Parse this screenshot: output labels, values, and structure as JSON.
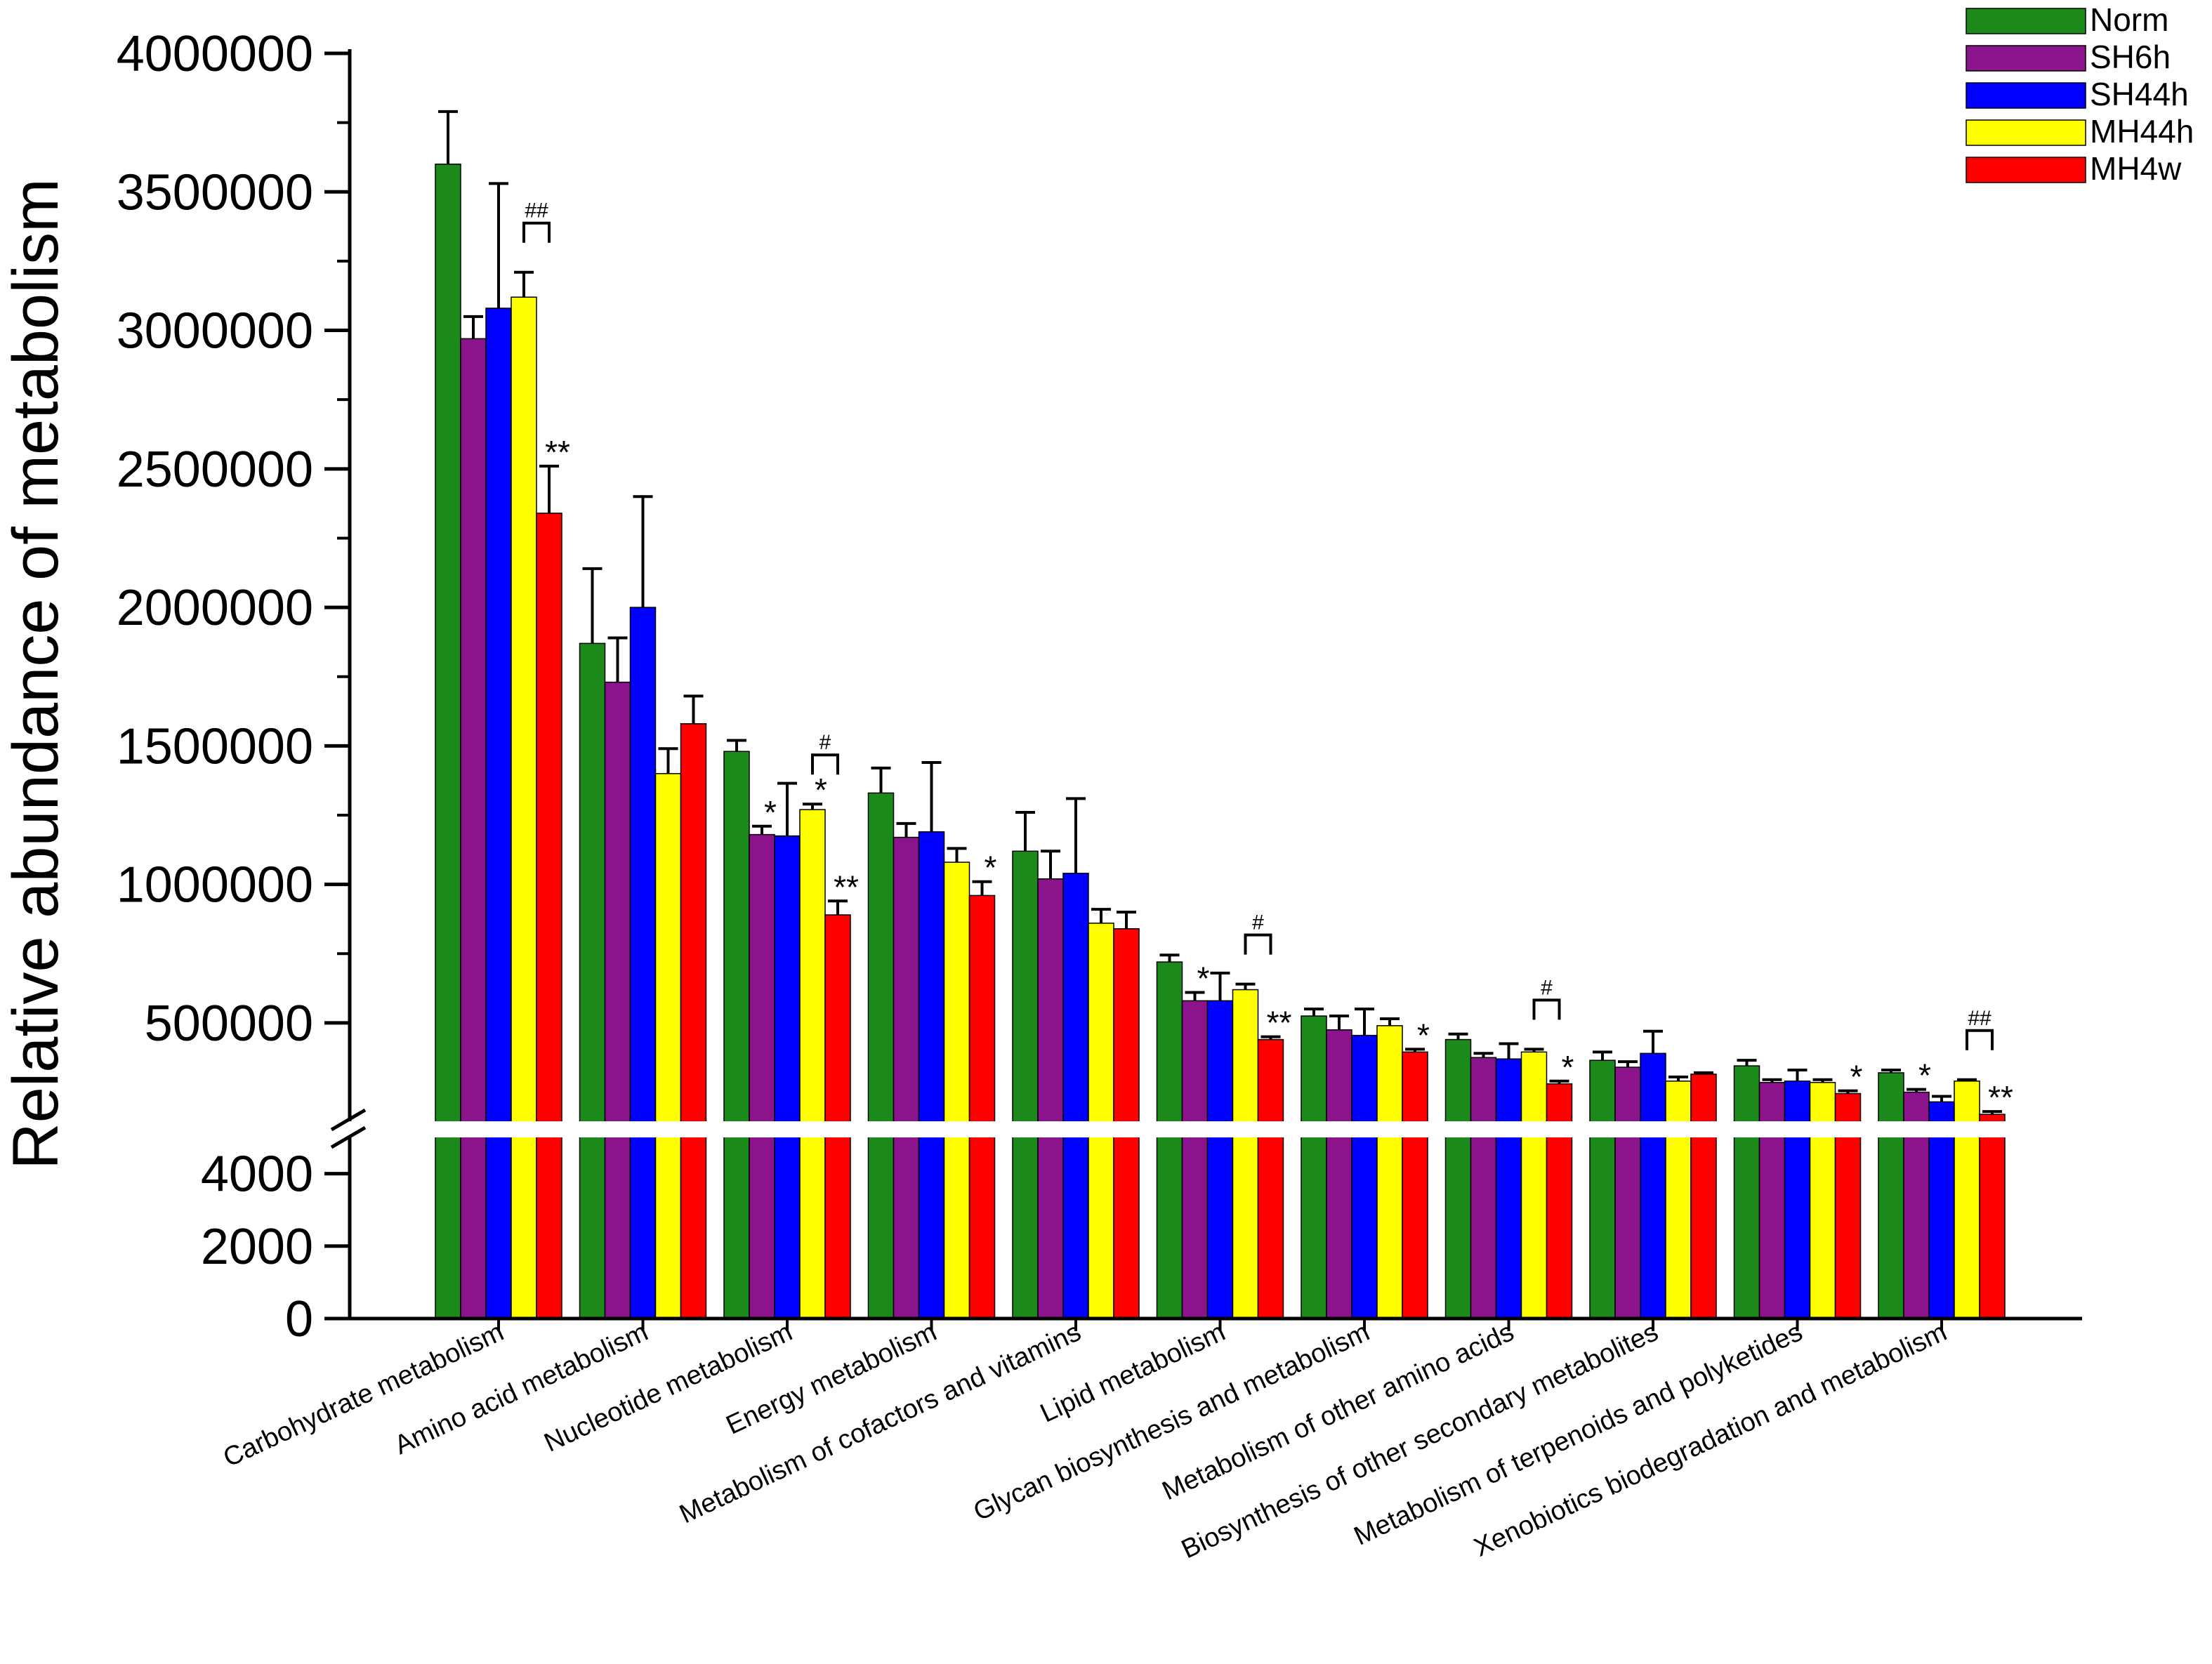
{
  "chart_data": {
    "type": "bar",
    "ylabel": "Relative abundance of metabolism",
    "xlabel": "",
    "title": "",
    "axis_break": true,
    "lower_segment": {
      "ylim": [
        0,
        5000
      ],
      "ticks": [
        0,
        2000,
        4000
      ],
      "tick_labels": [
        "0",
        "2000",
        "4000"
      ]
    },
    "upper_segment": {
      "ylim": [
        150000,
        4000000
      ],
      "ticks": [
        500000,
        1000000,
        1500000,
        2000000,
        2500000,
        3000000,
        3500000,
        4000000
      ],
      "tick_labels": [
        "500000",
        "1000000",
        "1500000",
        "2000000",
        "2500000",
        "3000000",
        "3500000",
        "4000000"
      ]
    },
    "categories": [
      "Carbohydrate metabolism",
      "Amino acid metabolism",
      "Nucleotide metabolism",
      "Energy metabolism",
      "Metabolism of cofactors and vitamins",
      "Lipid metabolism",
      "Glycan biosynthesis and metabolism",
      "Metabolism of other amino acids",
      "Biosynthesis of other secondary metabolites",
      "Metabolism of terpenoids and polyketides",
      "Xenobiotics biodegradation and metabolism"
    ],
    "series": [
      {
        "name": "Norm",
        "color": "#1b8a1b",
        "values": [
          3600000,
          1870000,
          1480000,
          1330000,
          1120000,
          720000,
          525000,
          440000,
          365000,
          345000,
          320000
        ],
        "errors": [
          190000,
          270000,
          40000,
          90000,
          140000,
          25000,
          25000,
          20000,
          30000,
          20000,
          10000
        ]
      },
      {
        "name": "SH6h",
        "color": "#8b138b",
        "values": [
          2970000,
          1730000,
          1180000,
          1170000,
          1020000,
          580000,
          475000,
          375000,
          340000,
          285000,
          250000
        ],
        "errors": [
          80000,
          160000,
          30000,
          50000,
          100000,
          30000,
          50000,
          15000,
          20000,
          10000,
          10000
        ]
      },
      {
        "name": "SH44h",
        "color": "#0000ff",
        "values": [
          3080000,
          2000000,
          1175000,
          1190000,
          1040000,
          580000,
          455000,
          370000,
          390000,
          290000,
          215000
        ],
        "errors": [
          450000,
          400000,
          190000,
          250000,
          270000,
          100000,
          95000,
          55000,
          80000,
          40000,
          20000
        ]
      },
      {
        "name": "MH44h",
        "color": "#ffff00",
        "values": [
          3120000,
          1400000,
          1270000,
          1080000,
          860000,
          620000,
          490000,
          395000,
          290000,
          285000,
          290000
        ],
        "errors": [
          90000,
          90000,
          20000,
          50000,
          50000,
          20000,
          25000,
          10000,
          15000,
          10000,
          5000
        ]
      },
      {
        "name": "MH4w",
        "color": "#ff0000",
        "values": [
          2340000,
          1580000,
          890000,
          960000,
          840000,
          440000,
          395000,
          280000,
          315000,
          245000,
          170000
        ],
        "errors": [
          170000,
          100000,
          50000,
          50000,
          60000,
          10000,
          10000,
          10000,
          5000,
          10000,
          10000
        ]
      }
    ],
    "significance": [
      {
        "category_index": 0,
        "series_index": 4,
        "label": "**"
      },
      {
        "category_index": 2,
        "series_index": 1,
        "label": "*"
      },
      {
        "category_index": 2,
        "series_index": 3,
        "label": "*"
      },
      {
        "category_index": 2,
        "series_index": 4,
        "label": "**"
      },
      {
        "category_index": 3,
        "series_index": 4,
        "label": "*"
      },
      {
        "category_index": 5,
        "series_index": 1,
        "label": "*"
      },
      {
        "category_index": 5,
        "series_index": 4,
        "label": "**"
      },
      {
        "category_index": 6,
        "series_index": 4,
        "label": "*"
      },
      {
        "category_index": 7,
        "series_index": 4,
        "label": "*"
      },
      {
        "category_index": 9,
        "series_index": 4,
        "label": "*"
      },
      {
        "category_index": 10,
        "series_index": 1,
        "label": "*"
      },
      {
        "category_index": 10,
        "series_index": 4,
        "label": "**"
      }
    ],
    "comparison_brackets": [
      {
        "category_index": 0,
        "from_series": 3,
        "to_series": 4,
        "label": "##"
      },
      {
        "category_index": 2,
        "from_series": 3,
        "to_series": 4,
        "label": "#"
      },
      {
        "category_index": 5,
        "from_series": 3,
        "to_series": 4,
        "label": "#"
      },
      {
        "category_index": 7,
        "from_series": 3,
        "to_series": 4,
        "label": "#"
      },
      {
        "category_index": 10,
        "from_series": 3,
        "to_series": 4,
        "label": "##"
      }
    ],
    "legend": {
      "position": "top-right",
      "entries": [
        "Norm",
        "SH6h",
        "SH44h",
        "MH44h",
        "MH4w"
      ]
    },
    "grid": false
  }
}
